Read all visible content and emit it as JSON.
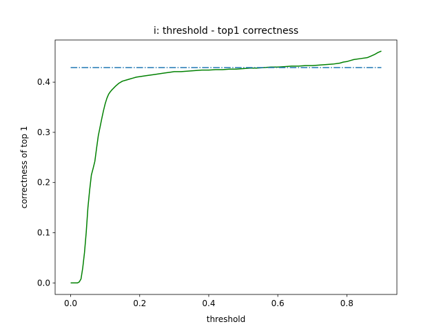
{
  "chart_data": {
    "type": "line",
    "title": "i: threshold - top1 correctness",
    "xlabel": "threshold",
    "ylabel": "correctness of top 1",
    "xlim": [
      -0.045,
      0.945
    ],
    "ylim": [
      -0.023,
      0.484
    ],
    "xticks": [
      0.0,
      0.2,
      0.4,
      0.6,
      0.8
    ],
    "xtick_labels": [
      "0.0",
      "0.2",
      "0.4",
      "0.6",
      "0.8"
    ],
    "yticks": [
      0.0,
      0.1,
      0.2,
      0.3,
      0.4
    ],
    "ytick_labels": [
      "0.0",
      "0.1",
      "0.2",
      "0.3",
      "0.4"
    ],
    "grid": false,
    "series": [
      {
        "style": "solid",
        "color": "#008000",
        "x": [
          0.0,
          0.01,
          0.02,
          0.025,
          0.03,
          0.035,
          0.04,
          0.045,
          0.05,
          0.055,
          0.06,
          0.065,
          0.07,
          0.075,
          0.08,
          0.085,
          0.09,
          0.095,
          0.1,
          0.105,
          0.11,
          0.115,
          0.12,
          0.13,
          0.14,
          0.15,
          0.16,
          0.17,
          0.18,
          0.19,
          0.2,
          0.22,
          0.24,
          0.25,
          0.27,
          0.29,
          0.3,
          0.32,
          0.34,
          0.36,
          0.38,
          0.4,
          0.42,
          0.44,
          0.46,
          0.48,
          0.5,
          0.52,
          0.54,
          0.56,
          0.58,
          0.6,
          0.62,
          0.64,
          0.66,
          0.68,
          0.7,
          0.72,
          0.74,
          0.76,
          0.78,
          0.79,
          0.8,
          0.81,
          0.82,
          0.84,
          0.86,
          0.87,
          0.88,
          0.89,
          0.9
        ],
        "y": [
          0.0,
          0.0,
          0.0,
          0.002,
          0.008,
          0.03,
          0.06,
          0.1,
          0.15,
          0.185,
          0.215,
          0.228,
          0.242,
          0.268,
          0.293,
          0.31,
          0.327,
          0.343,
          0.357,
          0.368,
          0.376,
          0.381,
          0.385,
          0.392,
          0.398,
          0.402,
          0.404,
          0.406,
          0.408,
          0.41,
          0.411,
          0.413,
          0.415,
          0.416,
          0.418,
          0.42,
          0.421,
          0.421,
          0.422,
          0.423,
          0.424,
          0.424,
          0.425,
          0.425,
          0.426,
          0.426,
          0.427,
          0.428,
          0.428,
          0.429,
          0.43,
          0.43,
          0.431,
          0.432,
          0.432,
          0.433,
          0.433,
          0.434,
          0.435,
          0.436,
          0.438,
          0.44,
          0.441,
          0.443,
          0.445,
          0.447,
          0.449,
          0.452,
          0.455,
          0.459,
          0.462
        ]
      },
      {
        "style": "dashdot",
        "color": "#1f77b4",
        "x": [
          0.0,
          0.9
        ],
        "y": [
          0.429,
          0.429
        ]
      }
    ]
  }
}
